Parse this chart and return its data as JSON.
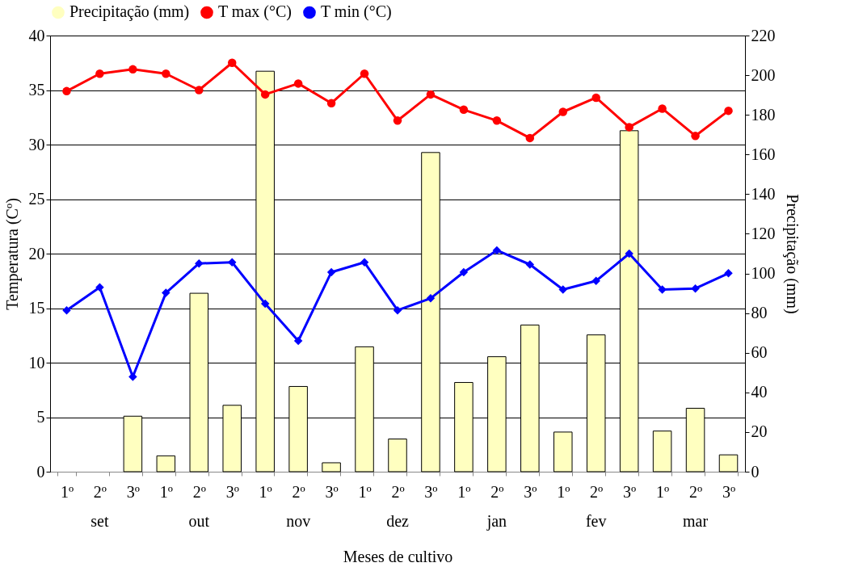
{
  "chart_data": {
    "type": "bar",
    "xlabel": "Meses de cultivo",
    "ylabel": "Temperatura (Cº)",
    "y2label": "Precipitação (mm)",
    "categories": [
      "1º",
      "2º",
      "3º",
      "1º",
      "2º",
      "3º",
      "1º",
      "2º",
      "3º",
      "1º",
      "2º",
      "3º",
      "1º",
      "2º",
      "3º",
      "1º",
      "2º",
      "3º",
      "1º",
      "2º",
      "3º"
    ],
    "annotations": [
      "set",
      "out",
      "nov",
      "dez",
      "jan",
      "fev",
      "mar"
    ],
    "series": [
      {
        "name": "Precipitação (mm)",
        "type": "bar",
        "axis": "y2",
        "color": "#ffffc0",
        "values": [
          0,
          0,
          28,
          8,
          90,
          33.5,
          202,
          43,
          4.5,
          63,
          16.5,
          161,
          45,
          58,
          74,
          20,
          69,
          172,
          20.5,
          32,
          8.5
        ]
      },
      {
        "name": "T max (°C)",
        "type": "line",
        "color": "#ff0000",
        "marker": "circle",
        "values": [
          34.9,
          36.5,
          36.9,
          36.5,
          35.0,
          37.5,
          34.6,
          35.6,
          33.8,
          36.5,
          32.2,
          34.6,
          33.2,
          32.2,
          30.6,
          33.0,
          34.3,
          31.6,
          33.3,
          30.8,
          33.1
        ]
      },
      {
        "name": "T min (°C)",
        "type": "line",
        "color": "#0000ff",
        "marker": "diamond",
        "values": [
          14.8,
          16.9,
          8.7,
          16.4,
          19.1,
          19.2,
          15.4,
          12.0,
          18.3,
          19.2,
          14.8,
          15.9,
          18.3,
          20.3,
          19.0,
          16.7,
          17.5,
          20.0,
          16.7,
          16.8,
          18.2
        ]
      }
    ],
    "ylim": [
      0,
      40
    ],
    "yticks": [
      0,
      5,
      10,
      15,
      20,
      25,
      30,
      35,
      40
    ],
    "y2lim": [
      0,
      220
    ],
    "y2ticks": [
      0,
      20,
      40,
      60,
      80,
      100,
      120,
      140,
      160,
      180,
      200,
      220
    ],
    "grid": "y",
    "legend": "top"
  }
}
